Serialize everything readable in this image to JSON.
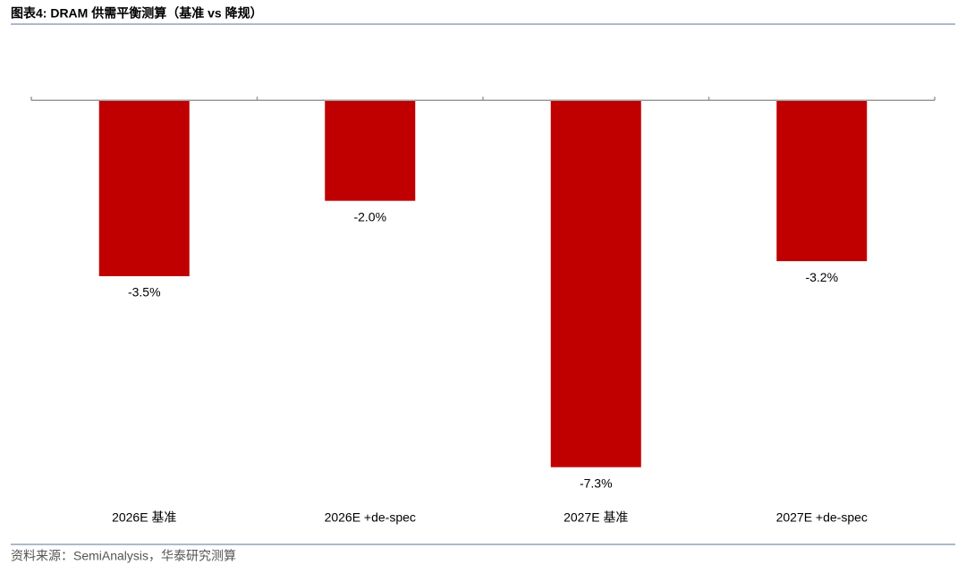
{
  "chart_data": {
    "type": "bar",
    "title": "图表4:  DRAM 供需平衡测算（基准 vs 降规）",
    "source": "资料来源：SemiAnalysis，华泰研究测算",
    "categories": [
      "2026E 基准",
      "2026E +de-spec",
      "2027E 基准",
      "2027E +de-spec"
    ],
    "values": [
      -3.5,
      -2.0,
      -7.3,
      -3.2
    ],
    "value_labels": [
      "-3.5%",
      "-2.0%",
      "-7.3%",
      "-3.2%"
    ],
    "color": "#c00000",
    "ylim": [
      -8,
      1
    ]
  }
}
